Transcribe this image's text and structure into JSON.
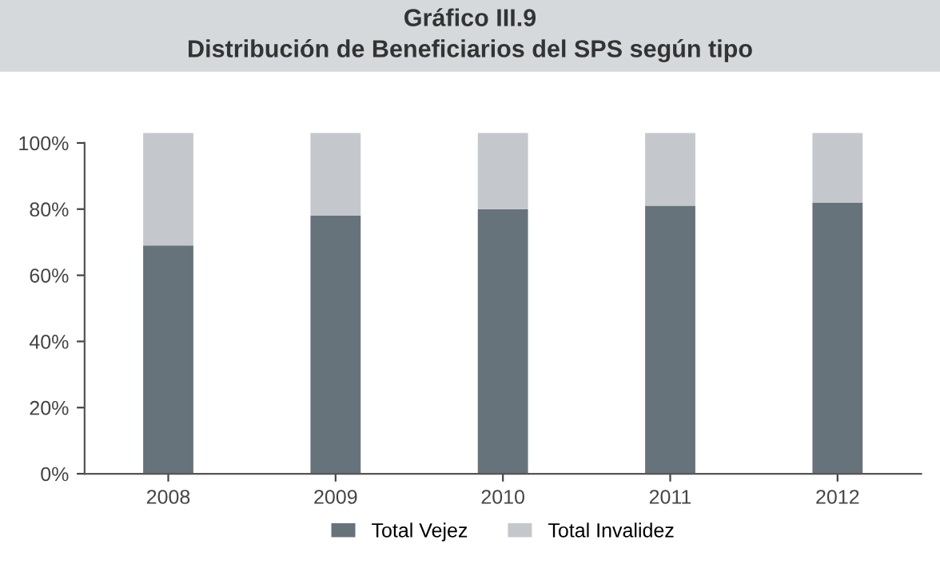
{
  "chart_data": {
    "type": "bar",
    "title": "Gráfico III.9",
    "subtitle": "Distribución de Beneficiarios del SPS según tipo",
    "categories": [
      "2008",
      "2009",
      "2010",
      "2011",
      "2012"
    ],
    "stacked": true,
    "series": [
      {
        "name": "Total Vejez",
        "color": "#67737a",
        "values": [
          69,
          78,
          80,
          81,
          82
        ]
      },
      {
        "name": "Total Invalidez",
        "color": "#c4c8cc",
        "values": [
          34,
          25,
          23,
          22,
          21
        ]
      }
    ],
    "ylim": [
      0,
      104
    ],
    "yticks": [
      {
        "value": 0,
        "label": "0%"
      },
      {
        "value": 20,
        "label": "20%"
      },
      {
        "value": 40,
        "label": "40%"
      },
      {
        "value": 60,
        "label": "60%"
      },
      {
        "value": 80,
        "label": "80%"
      },
      {
        "value": 100,
        "label": "100%"
      }
    ],
    "grid": false,
    "legend": "bottom"
  }
}
